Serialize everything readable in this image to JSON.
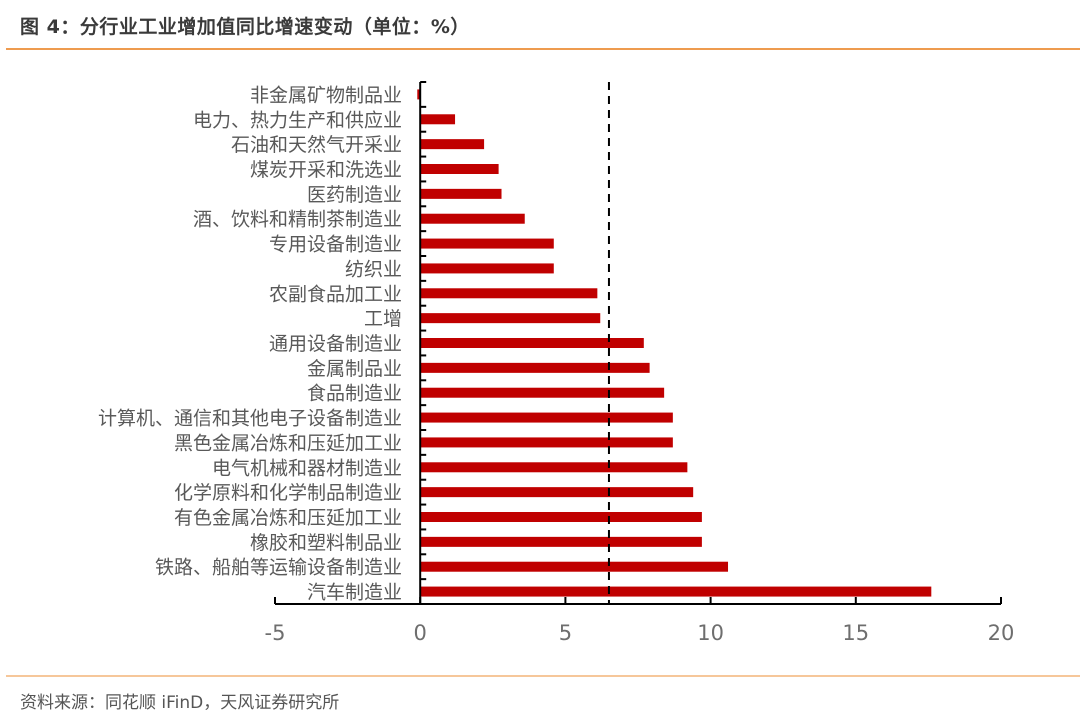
{
  "figure": {
    "title": "图 4：分行业工业增加值同比增速变动（单位：%）",
    "source": "资料来源：同花顺 iFinD，天风证券研究所"
  },
  "colors": {
    "bar": "#c00000",
    "axis": "#000000",
    "reference_line": "#000000",
    "title_rule": "#ee9b4f",
    "source_rule": "#f6c79a"
  },
  "chart_data": {
    "type": "bar",
    "orientation": "horizontal",
    "title": "分行业工业增加值同比增速变动（单位：%）",
    "xlabel": "",
    "ylabel": "",
    "xlim": [
      -5,
      20
    ],
    "x_ticks": [
      -5,
      0,
      5,
      10,
      15,
      20
    ],
    "grid": false,
    "legend": null,
    "reference_line": {
      "x": 6.5,
      "style": "dashed",
      "note": "工增 reference"
    },
    "categories": [
      "非金属矿物制品业",
      "电力、热力生产和供应业",
      "石油和天然气开采业",
      "煤炭开采和洗选业",
      "医药制造业",
      "酒、饮料和精制茶制造业",
      "专用设备制造业",
      "纺织业",
      "农副食品加工业",
      "工增",
      "通用设备制造业",
      "金属制品业",
      "食品制造业",
      "计算机、通信和其他电子设备制造业",
      "黑色金属冶炼和压延加工业",
      "电气机械和器材制造业",
      "化学原料和化学制品制造业",
      "有色金属冶炼和压延加工业",
      "橡胶和塑料制品业",
      "铁路、船舶等运输设备制造业",
      "汽车制造业"
    ],
    "values": [
      -0.1,
      1.2,
      2.2,
      2.7,
      2.8,
      3.6,
      4.6,
      4.6,
      6.1,
      6.2,
      7.7,
      7.9,
      8.4,
      8.7,
      8.7,
      9.2,
      9.4,
      9.7,
      9.7,
      10.6,
      17.6
    ]
  }
}
